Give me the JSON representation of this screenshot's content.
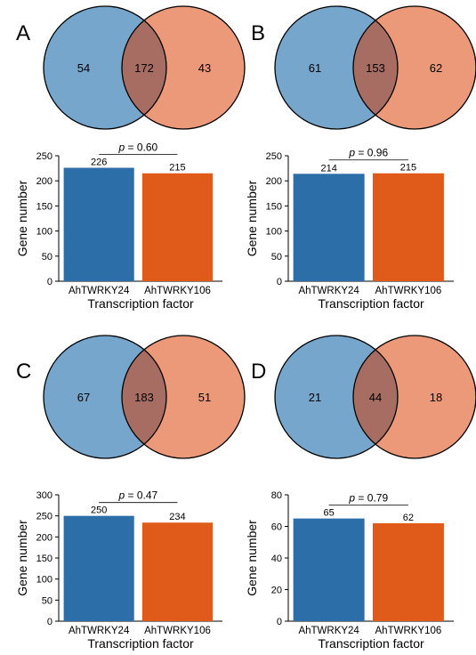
{
  "colors": {
    "set1": "#2b6ea8",
    "set2": "#e05a1a",
    "venn1": "#77a6cc",
    "venn2": "#ec997a",
    "overlap": "#a76d63"
  },
  "chart_data": [
    {
      "panel": "A",
      "type": "bar",
      "venn": {
        "left": "54",
        "both": "172",
        "right": "43"
      },
      "categories": [
        "AhTWRKY24",
        "AhTWRKY106"
      ],
      "values": [
        226,
        215
      ],
      "value_labels": [
        "226",
        "215"
      ],
      "ylim": [
        0,
        250
      ],
      "yticks": [
        "0",
        "50",
        "100",
        "150",
        "200",
        "250"
      ],
      "xlabel": "Transcription factor",
      "ylabel": "Gene number",
      "p_label": "p",
      "p_text": " = 0.60"
    },
    {
      "panel": "B",
      "type": "bar",
      "venn": {
        "left": "61",
        "both": "153",
        "right": "62"
      },
      "categories": [
        "AhTWRKY24",
        "AhTWRKY106"
      ],
      "values": [
        214,
        215
      ],
      "value_labels": [
        "214",
        "215"
      ],
      "ylim": [
        0,
        250
      ],
      "yticks": [
        "0",
        "50",
        "100",
        "150",
        "200",
        "250"
      ],
      "xlabel": "Transcription factor",
      "ylabel": "Gene number",
      "p_label": "p",
      "p_text": " = 0.96"
    },
    {
      "panel": "C",
      "type": "bar",
      "venn": {
        "left": "67",
        "both": "183",
        "right": "51"
      },
      "categories": [
        "AhTWRKY24",
        "AhTWRKY106"
      ],
      "values": [
        250,
        234
      ],
      "value_labels": [
        "250",
        "234"
      ],
      "ylim": [
        0,
        300
      ],
      "yticks": [
        "0",
        "50",
        "100",
        "150",
        "200",
        "250",
        "300"
      ],
      "xlabel": "Transcription factor",
      "ylabel": "Gene number",
      "p_label": "p",
      "p_text": " = 0.47"
    },
    {
      "panel": "D",
      "type": "bar",
      "venn": {
        "left": "21",
        "both": "44",
        "right": "18"
      },
      "categories": [
        "AhTWRKY24",
        "AhTWRKY106"
      ],
      "values": [
        65,
        62
      ],
      "value_labels": [
        "65",
        "62"
      ],
      "ylim": [
        0,
        80
      ],
      "yticks": [
        "0",
        "20",
        "40",
        "60",
        "80"
      ],
      "xlabel": "Transcription factor",
      "ylabel": "Gene number",
      "p_label": "p",
      "p_text": " = 0.79"
    }
  ]
}
